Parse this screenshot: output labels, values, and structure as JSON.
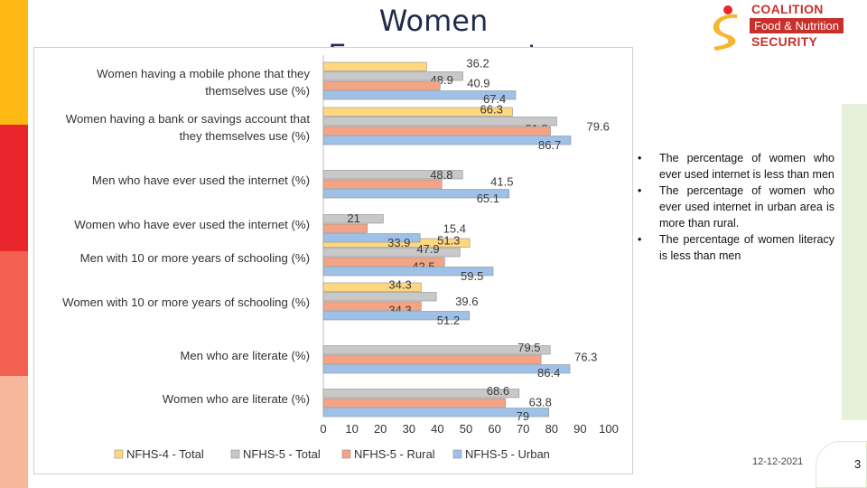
{
  "slide": {
    "title": "Women Empowerment",
    "date": "12-12-2021",
    "page_number": "3"
  },
  "logo": {
    "line1": "COALITION",
    "line2": "Food & Nutrition",
    "line3": "SECURITY",
    "color": "#c9302c",
    "accent": "#f6b52c"
  },
  "stripe_colors": [
    "#fdb813",
    "#e9262b",
    "#f26150",
    "#f7b79a"
  ],
  "notes": [
    "The percentage of women who ever used internet is less than men",
    "The percentage of women who ever used internet in urban area is more than rural.",
    "The percentage of women literacy is less than men"
  ],
  "chart_data": {
    "type": "bar",
    "orientation": "horizontal",
    "categories": [
      "Women having a mobile phone that they themselves use (%)",
      "Women having a bank or savings account that they themselves use (%)",
      "Men who have ever used the internet (%)",
      "Women who have ever used the internet (%)",
      "Men with 10 or more years of schooling (%)",
      "Women with 10 or more years of schooling (%)",
      "Men who are literate (%)",
      "Women who are literate (%)"
    ],
    "category_lines": [
      [
        "Women having a mobile phone that they",
        "themselves use (%)"
      ],
      [
        "Women having a bank or savings account that",
        "they themselves use (%)"
      ],
      [
        "Men who have ever used the internet (%)"
      ],
      [
        "Women who have ever used the internet (%)"
      ],
      [
        "Men with 10 or more years of schooling (%)"
      ],
      [
        "Women with 10 or more years of schooling (%)"
      ],
      [
        "Men who are literate (%)"
      ],
      [
        "Women who are literate (%)"
      ]
    ],
    "series": [
      {
        "name": "NFHS-4 - Total",
        "color": "#ffd77f",
        "values": [
          36.2,
          66.3,
          null,
          null,
          51.3,
          34.3,
          null,
          null
        ]
      },
      {
        "name": "NFHS-5 - Total",
        "color": "#c8c8c8",
        "values": [
          48.9,
          81.8,
          48.8,
          21,
          47.9,
          39.6,
          79.5,
          68.6
        ]
      },
      {
        "name": "NFHS-5 - Rural",
        "color": "#f4a485",
        "values": [
          40.9,
          79.6,
          41.5,
          15.4,
          42.5,
          34.3,
          76.3,
          63.8
        ]
      },
      {
        "name": "NFHS-5 - Urban",
        "color": "#9fc1e8",
        "values": [
          67.4,
          86.7,
          65.1,
          33.9,
          59.5,
          51.2,
          86.4,
          79
        ]
      }
    ],
    "labels": [
      [
        "36.2",
        "48.9",
        "40.9",
        "67.4"
      ],
      [
        "66.3",
        "81.8",
        "79.6",
        "86.7"
      ],
      [
        "",
        "48.8",
        "41.5",
        "65.1"
      ],
      [
        "",
        "21",
        "15.4",
        "33.9"
      ],
      [
        "51.3",
        "47.9",
        "42.5",
        "59.5"
      ],
      [
        "34.3",
        "39.6",
        "34.3",
        "51.2"
      ],
      [
        "",
        "79.5",
        "76.3",
        "86.4"
      ],
      [
        "",
        "68.6",
        "63.8",
        "79"
      ]
    ],
    "xlim": [
      0,
      100
    ],
    "xticks": [
      0,
      10,
      20,
      30,
      40,
      50,
      60,
      70,
      80,
      90,
      100
    ],
    "xtick_labels": [
      "0",
      "10",
      "20",
      "30",
      "40",
      "50",
      "60",
      "70",
      "80",
      "90",
      "100"
    ],
    "legend_position": "bottom",
    "grid": false
  }
}
